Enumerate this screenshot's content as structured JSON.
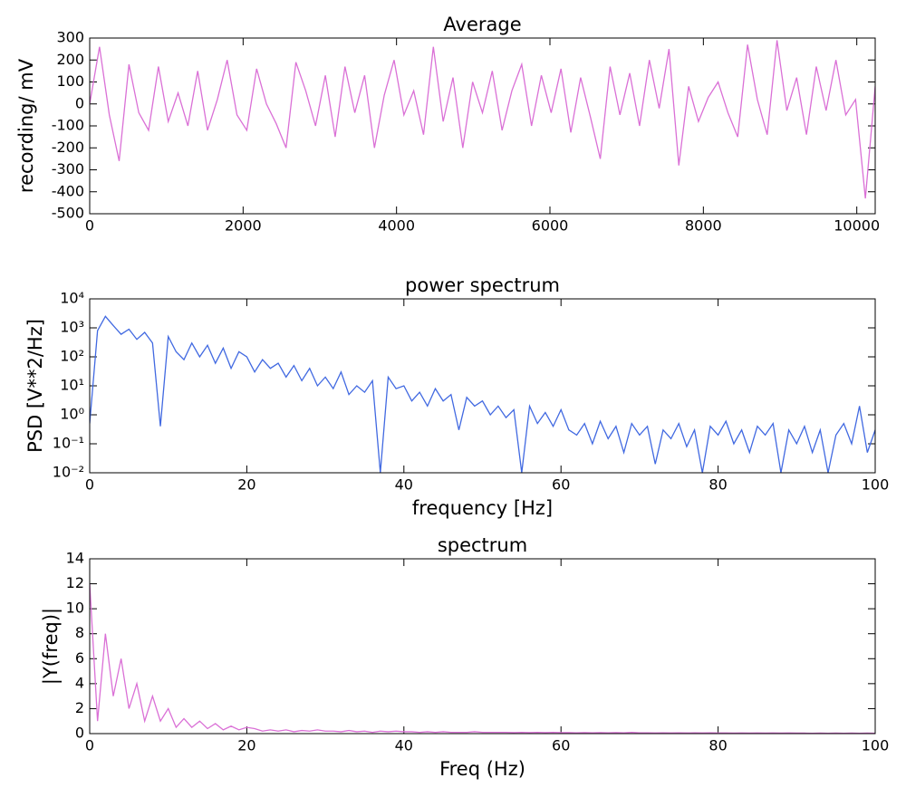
{
  "chart_data": [
    {
      "type": "line",
      "title": "Average",
      "ylabel": "recording/ mV",
      "color": "#da70d6",
      "xlim": [
        0,
        10240
      ],
      "xticks": [
        0,
        2000,
        4000,
        6000,
        8000,
        10000
      ],
      "ylim": [
        -500,
        300
      ],
      "yticks": [
        -500,
        -400,
        -300,
        -200,
        -100,
        0,
        100,
        200,
        300
      ],
      "x": [
        0,
        128,
        256,
        384,
        512,
        640,
        768,
        896,
        1024,
        1152,
        1280,
        1408,
        1536,
        1664,
        1792,
        1920,
        2048,
        2176,
        2304,
        2432,
        2560,
        2688,
        2816,
        2944,
        3072,
        3200,
        3328,
        3456,
        3584,
        3712,
        3840,
        3968,
        4096,
        4224,
        4352,
        4480,
        4608,
        4736,
        4864,
        4992,
        5120,
        5248,
        5376,
        5504,
        5632,
        5760,
        5888,
        6016,
        6144,
        6272,
        6400,
        6528,
        6656,
        6784,
        6912,
        7040,
        7168,
        7296,
        7424,
        7552,
        7680,
        7808,
        7936,
        8064,
        8192,
        8320,
        8448,
        8576,
        8704,
        8832,
        8960,
        9088,
        9216,
        9344,
        9472,
        9600,
        9728,
        9856,
        9984,
        10112,
        10240
      ],
      "values": [
        0,
        260,
        -50,
        -260,
        180,
        -40,
        -120,
        170,
        -80,
        50,
        -100,
        150,
        -120,
        20,
        200,
        -50,
        -120,
        160,
        0,
        -90,
        -200,
        190,
        60,
        -100,
        130,
        -150,
        170,
        -40,
        130,
        -200,
        40,
        200,
        -50,
        60,
        -140,
        260,
        -80,
        120,
        -200,
        100,
        -40,
        150,
        -120,
        60,
        180,
        -100,
        130,
        -40,
        160,
        -130,
        120,
        -60,
        -250,
        170,
        -50,
        140,
        -100,
        200,
        -20,
        250,
        -280,
        80,
        -80,
        30,
        100,
        -40,
        -150,
        270,
        20,
        -140,
        290,
        -30,
        120,
        -140,
        170,
        -30,
        200,
        -50,
        20,
        -430,
        80
      ]
    },
    {
      "type": "line",
      "title": "power spectrum",
      "xlabel": "frequency [Hz]",
      "ylabel": "PSD [V**2/Hz]",
      "color": "#4169e1",
      "yscale": "log",
      "xlim": [
        0,
        100
      ],
      "xticks": [
        0,
        20,
        40,
        60,
        80,
        100
      ],
      "ylim": [
        0.01,
        10000
      ],
      "yticks": [
        {
          "value": 0.01,
          "label": "10⁻²"
        },
        {
          "value": 0.1,
          "label": "10⁻¹"
        },
        {
          "value": 1,
          "label": "10⁰"
        },
        {
          "value": 10,
          "label": "10¹"
        },
        {
          "value": 100,
          "label": "10²"
        },
        {
          "value": 1000,
          "label": "10³"
        },
        {
          "value": 10000,
          "label": "10⁴"
        }
      ],
      "x": [
        0,
        1,
        2,
        3,
        4,
        5,
        6,
        7,
        8,
        9,
        10,
        11,
        12,
        13,
        14,
        15,
        16,
        17,
        18,
        19,
        20,
        21,
        22,
        23,
        24,
        25,
        26,
        27,
        28,
        29,
        30,
        31,
        32,
        33,
        34,
        35,
        36,
        37,
        38,
        39,
        40,
        41,
        42,
        43,
        44,
        45,
        46,
        47,
        48,
        49,
        50,
        51,
        52,
        53,
        54,
        55,
        56,
        57,
        58,
        59,
        60,
        61,
        62,
        63,
        64,
        65,
        66,
        67,
        68,
        69,
        70,
        71,
        72,
        73,
        74,
        75,
        76,
        77,
        78,
        79,
        80,
        81,
        82,
        83,
        84,
        85,
        86,
        87,
        88,
        89,
        90,
        91,
        92,
        93,
        94,
        95,
        96,
        97,
        98,
        99,
        100
      ],
      "values": [
        0.5,
        800,
        2500,
        1200,
        600,
        900,
        400,
        700,
        300,
        0.4,
        500,
        150,
        80,
        300,
        100,
        250,
        60,
        200,
        40,
        150,
        100,
        30,
        80,
        40,
        60,
        20,
        50,
        15,
        40,
        10,
        20,
        8,
        30,
        5,
        10,
        6,
        15,
        0.01,
        20,
        8,
        10,
        3,
        6,
        2,
        8,
        3,
        5,
        0.3,
        4,
        2,
        3,
        1,
        2,
        0.8,
        1.5,
        0.01,
        2,
        0.5,
        1.2,
        0.4,
        1.5,
        0.3,
        0.2,
        0.5,
        0.1,
        0.6,
        0.15,
        0.4,
        0.05,
        0.5,
        0.2,
        0.4,
        0.02,
        0.3,
        0.15,
        0.5,
        0.08,
        0.3,
        0.01,
        0.4,
        0.2,
        0.6,
        0.1,
        0.3,
        0.05,
        0.4,
        0.2,
        0.5,
        0.01,
        0.3,
        0.1,
        0.4,
        0.05,
        0.3,
        0.01,
        0.2,
        0.5,
        0.1,
        2,
        0.05,
        0.3
      ]
    },
    {
      "type": "line",
      "title": "spectrum",
      "xlabel": "Freq (Hz)",
      "ylabel": "|Y(freq)|",
      "color": "#da70d6",
      "xlim": [
        0,
        100
      ],
      "xticks": [
        0,
        20,
        40,
        60,
        80,
        100
      ],
      "ylim": [
        0,
        14
      ],
      "yticks": [
        0,
        2,
        4,
        6,
        8,
        10,
        12,
        14
      ],
      "x": [
        0,
        1,
        2,
        3,
        4,
        5,
        6,
        7,
        8,
        9,
        10,
        11,
        12,
        13,
        14,
        15,
        16,
        17,
        18,
        19,
        20,
        21,
        22,
        23,
        24,
        25,
        26,
        27,
        28,
        29,
        30,
        31,
        32,
        33,
        34,
        35,
        36,
        37,
        38,
        39,
        40,
        41,
        42,
        43,
        44,
        45,
        46,
        47,
        48,
        49,
        50,
        51,
        52,
        53,
        54,
        55,
        56,
        57,
        58,
        59,
        60,
        61,
        62,
        63,
        64,
        65,
        66,
        67,
        68,
        69,
        70,
        71,
        72,
        73,
        74,
        75,
        76,
        77,
        78,
        79,
        80,
        81,
        82,
        83,
        84,
        85,
        86,
        87,
        88,
        89,
        90,
        91,
        92,
        93,
        94,
        95,
        96,
        97,
        98,
        99,
        100
      ],
      "values": [
        12,
        1,
        8,
        3,
        6,
        2,
        4,
        1,
        3,
        1,
        2,
        0.5,
        1.2,
        0.5,
        1,
        0.4,
        0.8,
        0.3,
        0.6,
        0.3,
        0.5,
        0.4,
        0.2,
        0.3,
        0.2,
        0.3,
        0.15,
        0.25,
        0.2,
        0.3,
        0.2,
        0.2,
        0.15,
        0.25,
        0.15,
        0.2,
        0.1,
        0.2,
        0.15,
        0.2,
        0.15,
        0.15,
        0.1,
        0.15,
        0.1,
        0.15,
        0.1,
        0.1,
        0.1,
        0.15,
        0.1,
        0.1,
        0.1,
        0.1,
        0.08,
        0.1,
        0.08,
        0.1,
        0.08,
        0.1,
        0.08,
        0.08,
        0.06,
        0.08,
        0.06,
        0.08,
        0.06,
        0.08,
        0.06,
        0.1,
        0.06,
        0.06,
        0.05,
        0.06,
        0.05,
        0.06,
        0.05,
        0.06,
        0.05,
        0.06,
        0.05,
        0.05,
        0.04,
        0.05,
        0.04,
        0.05,
        0.04,
        0.05,
        0.04,
        0.05,
        0.04,
        0.04,
        0.03,
        0.04,
        0.03,
        0.04,
        0.03,
        0.04,
        0.03,
        0.04,
        0.03
      ]
    }
  ]
}
